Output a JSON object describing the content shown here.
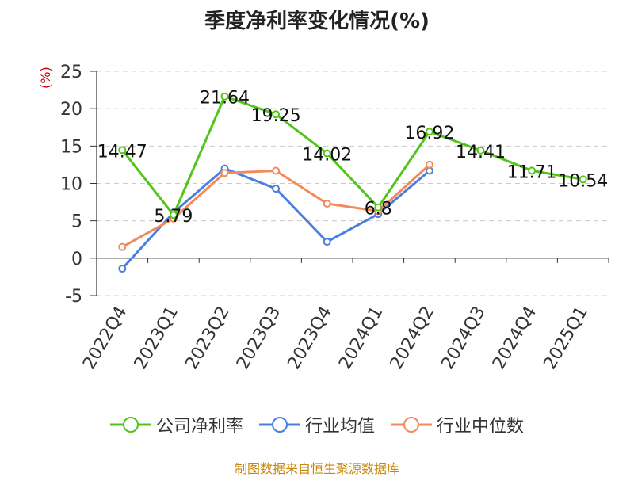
{
  "chart_data": {
    "type": "line",
    "title": "季度净利率变化情况(%)",
    "ylabel": "(%)",
    "ylim": [
      -5,
      25
    ],
    "yticks": [
      -5,
      0,
      5,
      10,
      15,
      20,
      25
    ],
    "categories": [
      "2022Q4",
      "2023Q1",
      "2023Q2",
      "2023Q3",
      "2023Q4",
      "2024Q1",
      "2024Q2",
      "2024Q3",
      "2024Q4",
      "2025Q1"
    ],
    "grid": true,
    "legend_position": "bottom",
    "series": [
      {
        "name": "公司净利率",
        "color": "#52c41a",
        "values": [
          14.47,
          5.79,
          21.64,
          19.25,
          14.02,
          6.8,
          16.92,
          14.41,
          11.71,
          10.54
        ],
        "labels": [
          "14.47",
          "5.79",
          "21.64",
          "19.25",
          "14.02",
          "6.8",
          "16.92",
          "14.41",
          "11.71",
          "10.54"
        ]
      },
      {
        "name": "行业均值",
        "color": "#4a7fe0",
        "values": [
          -1.4,
          6.1,
          12.0,
          9.3,
          2.2,
          5.9,
          11.7,
          null,
          null,
          null
        ]
      },
      {
        "name": "行业中位数",
        "color": "#f28a5a",
        "values": [
          1.5,
          5.3,
          11.4,
          11.7,
          7.3,
          6.3,
          12.5,
          null,
          null,
          null
        ]
      }
    ]
  },
  "source_text": "制图数据来自恒生聚源数据库"
}
